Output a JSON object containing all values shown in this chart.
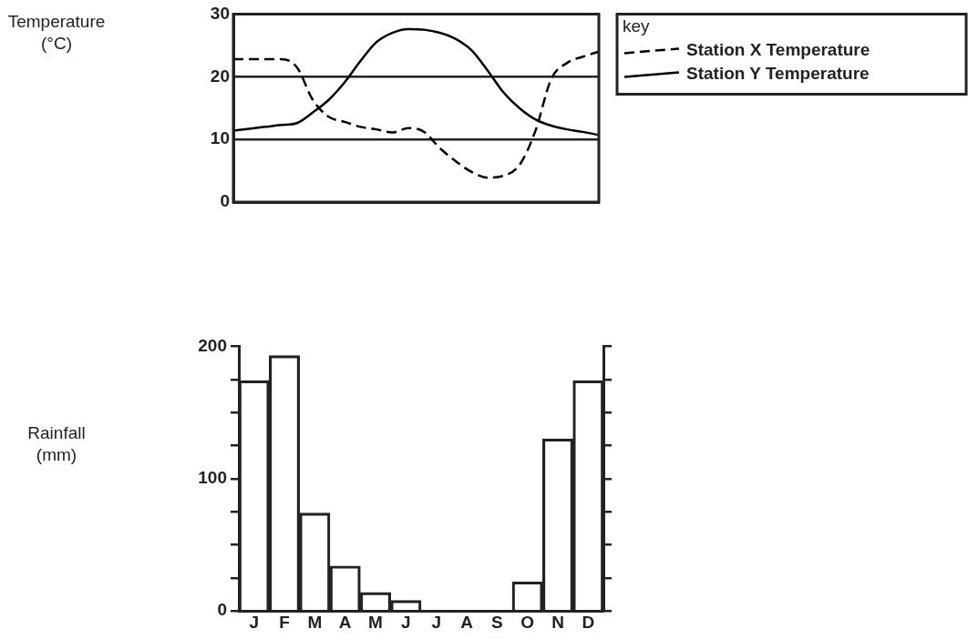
{
  "chart_data": [
    {
      "type": "line",
      "ylabel": "Temperature (°C)",
      "legend_title": "key",
      "legend": "right",
      "grid": "y",
      "tick_labels": "y",
      "categories": [
        null,
        null,
        null,
        null,
        null,
        null,
        null,
        null,
        null,
        null,
        null,
        null,
        null,
        null,
        null,
        null,
        null,
        null,
        null,
        null,
        null,
        null,
        null,
        null
      ],
      "ylim": [
        0,
        30
      ],
      "yticks": [
        0,
        10,
        20,
        30
      ],
      "series": [
        {
          "name": "Station X Temperature",
          "color": "#000000",
          "line_style": "dashed",
          "values": [
            22.8,
            22.8,
            22.8,
            22.8,
            21.5,
            16.3,
            13.6,
            12.8,
            12.0,
            11.6,
            11.1,
            11.8,
            11.2,
            8.6,
            6.5,
            4.8,
            3.9,
            4.2,
            5.9,
            11.3,
            19.6,
            22.2,
            23.2,
            24.0
          ]
        },
        {
          "name": "Station Y Temperature",
          "color": "#000000",
          "line_style": "solid",
          "values": [
            11.4,
            11.7,
            12.0,
            12.3,
            12.6,
            14.3,
            16.3,
            19.1,
            22.5,
            25.5,
            27.0,
            27.6,
            27.5,
            27.0,
            26.0,
            24.2,
            21.0,
            17.5,
            15.0,
            13.2,
            12.2,
            11.6,
            11.2,
            10.7
          ]
        }
      ]
    },
    {
      "type": "bar",
      "ylabel": "Rainfall (mm)",
      "grid": false,
      "categories": [
        "J",
        "F",
        "M",
        "A",
        "M",
        "J",
        "J",
        "A",
        "S",
        "O",
        "N",
        "D"
      ],
      "values": [
        174,
        193,
        74,
        34,
        14,
        8,
        0,
        0,
        0,
        22,
        130,
        174
      ],
      "color": "#222222",
      "ylim": [
        0,
        200
      ],
      "yticks": [
        0,
        {
          "value": 25,
          "label": null
        },
        {
          "value": 50,
          "label": null
        },
        {
          "value": 75,
          "label": null
        },
        100,
        {
          "value": 125,
          "label": null
        },
        {
          "value": 150,
          "label": null
        },
        {
          "value": 175,
          "label": null
        },
        200
      ]
    }
  ]
}
